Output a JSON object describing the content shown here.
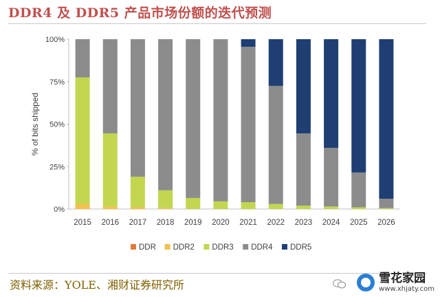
{
  "header": {
    "title": "DDR4 及 DDR5 产品市场份额的迭代预测"
  },
  "footer": {
    "source": "资料来源：YOLE、湘财证券研究所",
    "watermark_cn": "雪花家园",
    "watermark_en": "www.xhjaty.com"
  },
  "chart_data": {
    "type": "bar",
    "stacked": true,
    "title": "",
    "xlabel": "",
    "ylabel": "% of bits shipped",
    "ylim": [
      0,
      100
    ],
    "yticks": [
      "0%",
      "25%",
      "50%",
      "75%",
      "100%"
    ],
    "grid": false,
    "legend_position": "bottom",
    "categories": [
      "2015",
      "2016",
      "2017",
      "2018",
      "2019",
      "2020",
      "2021",
      "2022",
      "2023",
      "2024",
      "2025",
      "2026"
    ],
    "series": [
      {
        "name": "DDR",
        "color": "#e07b39",
        "values": [
          0,
          0,
          0,
          0,
          0,
          0,
          0,
          0,
          0,
          0,
          0,
          0
        ]
      },
      {
        "name": "DDR2",
        "color": "#f2c14e",
        "values": [
          3,
          1.5,
          1,
          0.5,
          0,
          0,
          0,
          0,
          0,
          0,
          0,
          0
        ]
      },
      {
        "name": "DDR3",
        "color": "#c3d650",
        "values": [
          74.5,
          43,
          18,
          10.5,
          6.5,
          4.5,
          4,
          3,
          2,
          1.5,
          1,
          0.5
        ]
      },
      {
        "name": "DDR4",
        "color": "#8c8c8c",
        "values": [
          22.5,
          55.5,
          81,
          89,
          93.5,
          95.5,
          91.5,
          69.5,
          42.5,
          34.5,
          20.5,
          5.5
        ]
      },
      {
        "name": "DDR5",
        "color": "#1f3f73",
        "values": [
          0,
          0,
          0,
          0,
          0,
          0,
          4.5,
          27.5,
          55.5,
          64,
          78.5,
          94
        ]
      }
    ]
  }
}
